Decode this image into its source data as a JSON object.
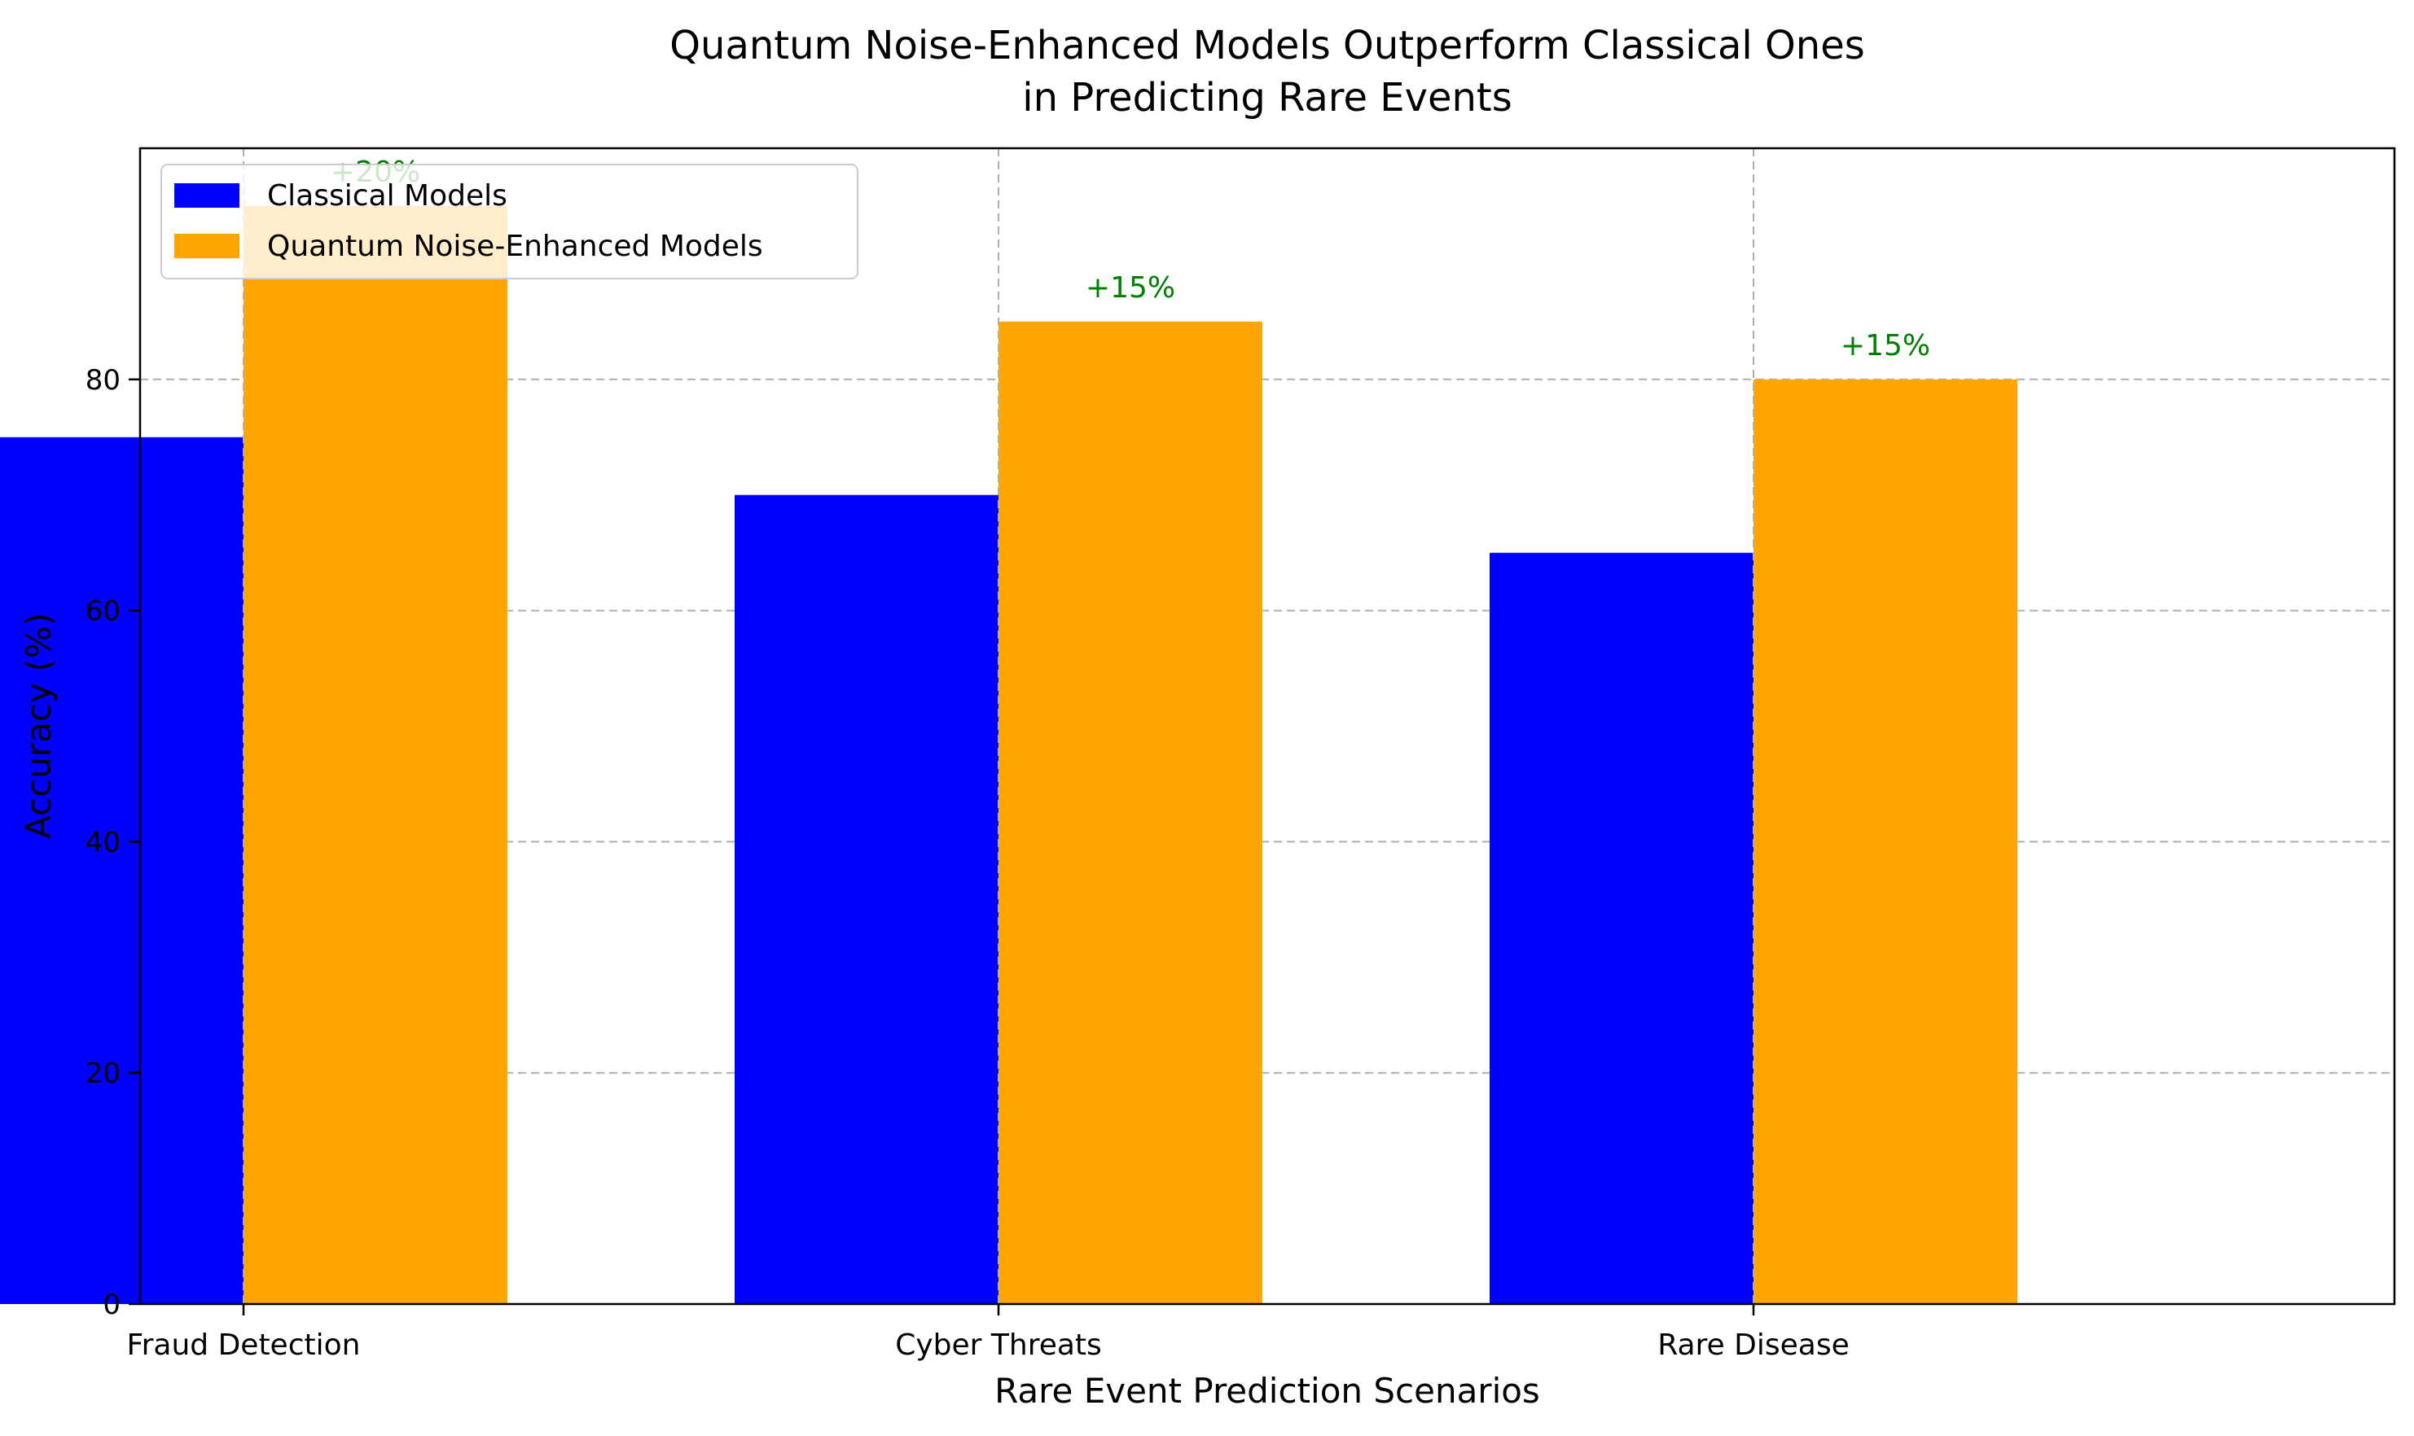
{
  "chart_data": {
    "type": "bar",
    "title": [
      "Quantum Noise-Enhanced Models Outperform Classical Ones",
      "in Predicting Rare Events"
    ],
    "xlabel": "Rare Event Prediction Scenarios",
    "ylabel": "Accuracy (%)",
    "categories": [
      "Fraud Detection",
      "Cyber Threats",
      "Rare Disease"
    ],
    "series": [
      {
        "name": "Classical Models",
        "values": [
          75,
          70,
          65
        ],
        "color": "#0000ff"
      },
      {
        "name": "Quantum Noise-Enhanced Models",
        "values": [
          95,
          85,
          80
        ],
        "color": "#ffa500"
      }
    ],
    "annotations": [
      "+20%",
      "+15%",
      "+15%"
    ],
    "annotation_color": "#008000",
    "ylim": [
      0,
      100
    ],
    "yticks": [
      0,
      20,
      40,
      60,
      80
    ],
    "grid": true,
    "legend_position": "top-left"
  }
}
